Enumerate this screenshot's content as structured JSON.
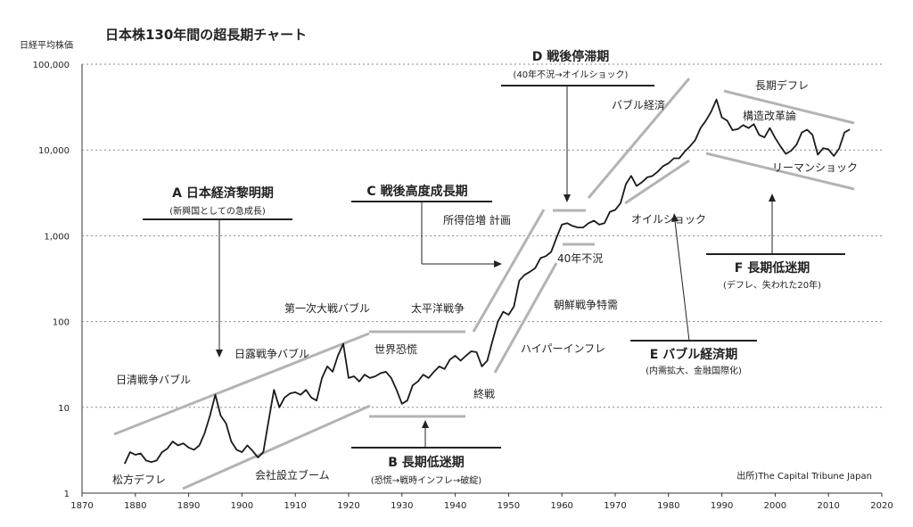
{
  "chart_data": {
    "type": "line",
    "title": "日本株130年間の超長期チャート",
    "ylabel": "日経平均株価",
    "source": "出所)The Capital Tribune Japan",
    "y_scale": "log",
    "xlim": [
      1870,
      2020
    ],
    "ylim": [
      1,
      100000
    ],
    "x_ticks": [
      "1870",
      "1880",
      "1890",
      "1900",
      "1910",
      "1920",
      "1930",
      "1940",
      "1950",
      "1960",
      "1970",
      "1980",
      "1990",
      "2000",
      "2010",
      "2020"
    ],
    "y_ticks": [
      "1",
      "10",
      "100",
      "1,000",
      "10,000",
      "100,000"
    ],
    "gridlines": "horizontal dotted",
    "series": [
      {
        "color": "#1a1a1a",
        "x": [
          1878,
          1879,
          1880,
          1881,
          1882,
          1883,
          1884,
          1885,
          1886,
          1887,
          1888,
          1889,
          1890,
          1891,
          1892,
          1893,
          1894,
          1895,
          1896,
          1897,
          1898,
          1899,
          1900,
          1901,
          1902,
          1903,
          1904,
          1905,
          1906,
          1907,
          1908,
          1909,
          1910,
          1911,
          1912,
          1913,
          1914,
          1915,
          1916,
          1917,
          1918,
          1919,
          1920,
          1921,
          1922,
          1923,
          1924,
          1925,
          1926,
          1927,
          1928,
          1929,
          1930,
          1931,
          1932,
          1933,
          1934,
          1935,
          1936,
          1937,
          1938,
          1939,
          1940,
          1941,
          1942,
          1943,
          1944,
          1945,
          1946,
          1947,
          1948,
          1949,
          1950,
          1951,
          1952,
          1953,
          1954,
          1955,
          1956,
          1957,
          1958,
          1959,
          1960,
          1961,
          1962,
          1963,
          1964,
          1965,
          1966,
          1967,
          1968,
          1969,
          1970,
          1971,
          1972,
          1973,
          1974,
          1975,
          1976,
          1977,
          1978,
          1979,
          1980,
          1981,
          1982,
          1983,
          1984,
          1985,
          1986,
          1987,
          1988,
          1989,
          1990,
          1991,
          1992,
          1993,
          1994,
          1995,
          1996,
          1997,
          1998,
          1999,
          2000,
          2001,
          2002,
          2003,
          2004,
          2005,
          2006,
          2007,
          2008,
          2009,
          2010,
          2011,
          2012,
          2013,
          2014
        ],
        "y": [
          2.2,
          3.0,
          2.8,
          2.9,
          2.4,
          2.3,
          2.4,
          3.0,
          3.3,
          4.0,
          3.6,
          3.8,
          3.4,
          3.2,
          3.6,
          5.0,
          8.0,
          14.0,
          8.0,
          6.5,
          4.0,
          3.2,
          3.0,
          3.6,
          3.1,
          2.6,
          3.0,
          7.0,
          16.0,
          10.0,
          13.0,
          14.5,
          15.0,
          14.0,
          16.0,
          13.0,
          12.0,
          22.0,
          30.0,
          26.0,
          40.0,
          55.0,
          22.0,
          23.0,
          20.0,
          24.0,
          22.0,
          23.0,
          25.0,
          26.0,
          22.0,
          16.0,
          11.0,
          12.0,
          18.0,
          20.0,
          24.0,
          22.0,
          26.0,
          30.0,
          28.0,
          36.0,
          40.0,
          35.0,
          40.0,
          45.0,
          44.0,
          30.0,
          35.0,
          60.0,
          100.0,
          130.0,
          120.0,
          150.0,
          300.0,
          350.0,
          380.0,
          420.0,
          550.0,
          580.0,
          650.0,
          950.0,
          1350.0,
          1400.0,
          1300.0,
          1250.0,
          1250.0,
          1400.0,
          1500.0,
          1350.0,
          1400.0,
          1900.0,
          2000.0,
          2400.0,
          4000.0,
          5000.0,
          3800.0,
          4200.0,
          4800.0,
          5000.0,
          5600.0,
          6500.0,
          7000.0,
          8000.0,
          8000.0,
          9500.0,
          11000.0,
          13000.0,
          18000.0,
          22000.0,
          28000.0,
          38800.0,
          24000.0,
          22000.0,
          17000.0,
          17500.0,
          19500.0,
          18000.0,
          20000.0,
          15000.0,
          14000.0,
          18000.0,
          13800.0,
          11000.0,
          9000.0,
          9800.0,
          11500.0,
          16000.0,
          17200.0,
          15000.0,
          8800.0,
          10500.0,
          10200.0,
          8500.0,
          10400.0,
          16000.0,
          17400.0
        ]
      }
    ],
    "annotations": [
      {
        "heading": "A 日本経済黎明期",
        "sub": "(新興国としての急成長)"
      },
      {
        "heading": "B 長期低迷期",
        "sub": "(恐慌→戦時インフレ→破綻)"
      },
      {
        "heading": "C 戦後高度成長期",
        "sub": ""
      },
      {
        "heading": "D 戦後停滞期",
        "sub": "(40年不況→オイルショック)"
      },
      {
        "heading": "E バブル経済期",
        "sub": "(内需拡大、金融国際化)"
      },
      {
        "heading": "F 長期低迷期",
        "sub": "(デフレ、失われた20年)"
      }
    ],
    "labels": [
      "松方デフレ",
      "日清戦争バブル",
      "日露戦争バブル",
      "第一次大戦バブル",
      "会社設立ブーム",
      "世界恐慌",
      "太平洋戦争",
      "終戦",
      "ハイパーインフレ",
      "朝鮮戦争特需",
      "所得倍増 計画",
      "40年不況",
      "バブル経済",
      "オイルショック",
      "長期デフレ",
      "構造改革論",
      "リーマンショック"
    ]
  }
}
